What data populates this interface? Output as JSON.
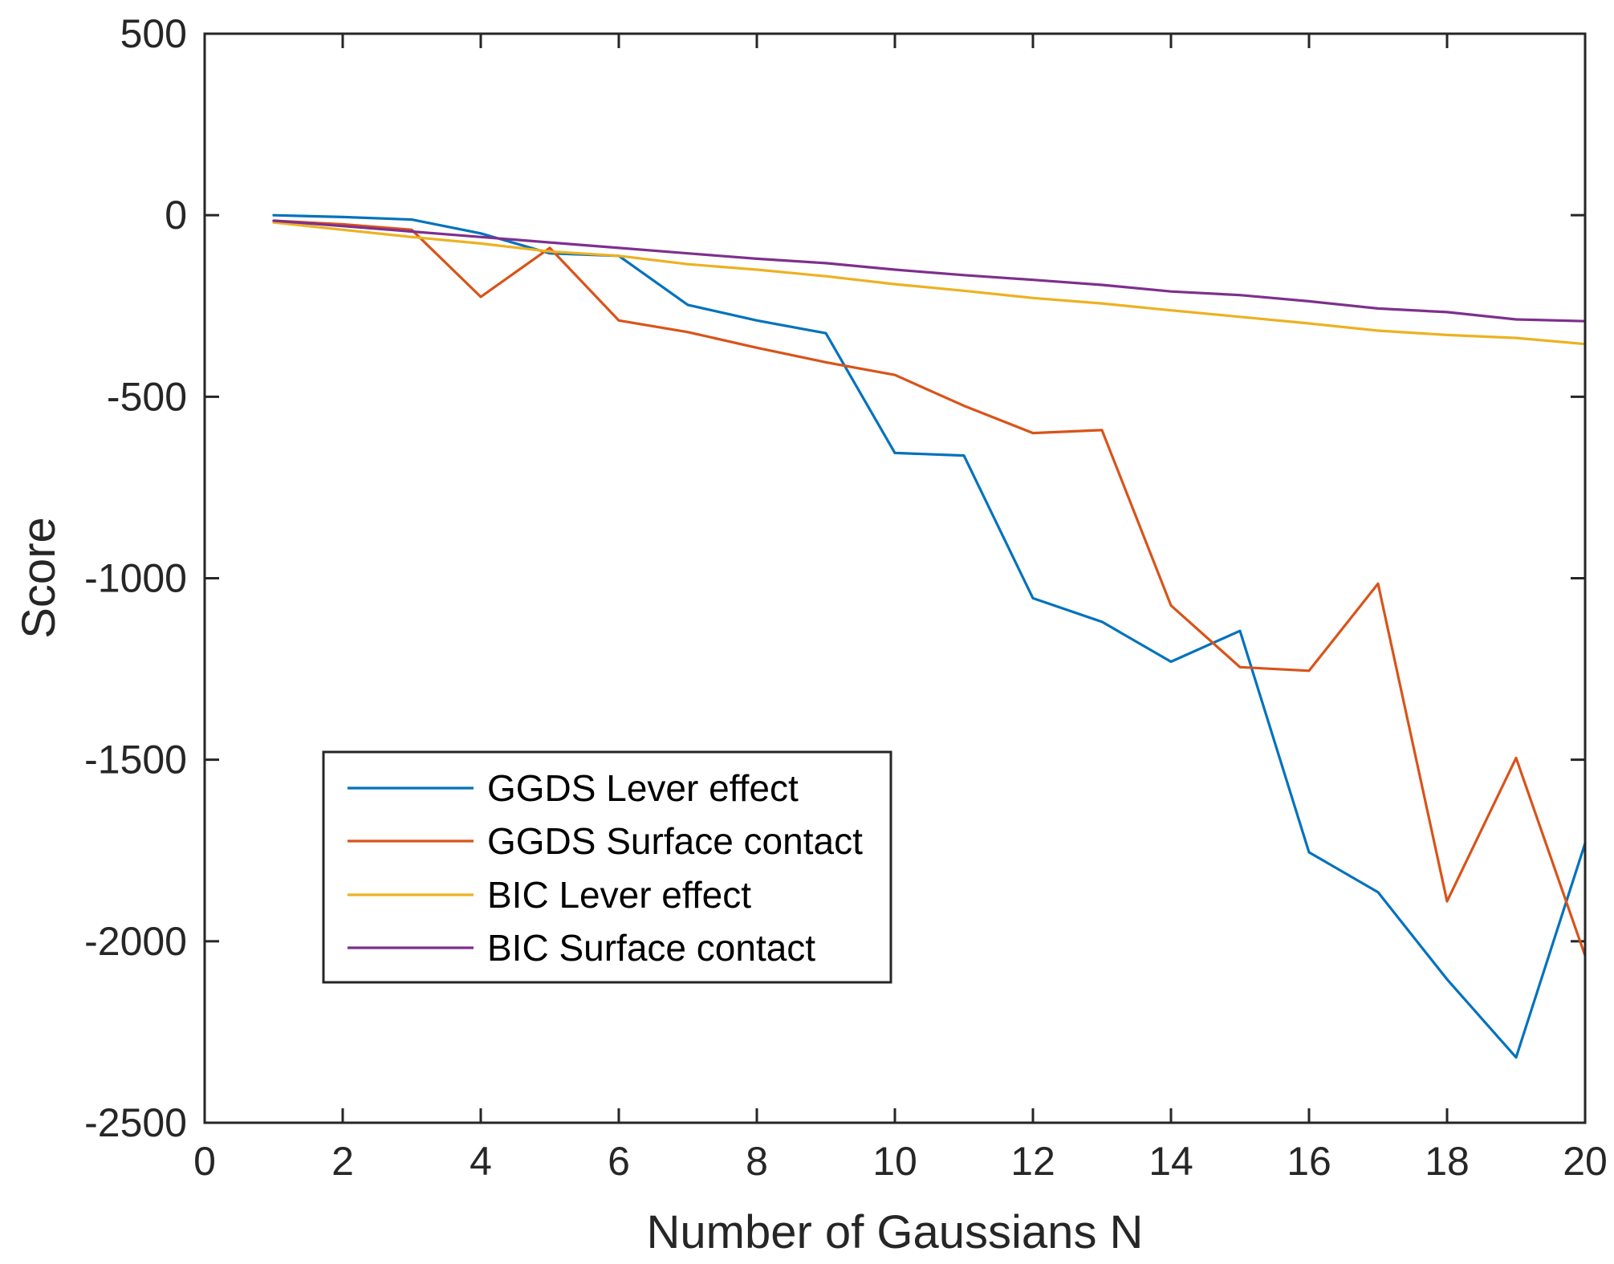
{
  "chart_data": {
    "type": "line",
    "title": "",
    "xlabel": "Number of Gaussians N",
    "ylabel": "Score",
    "xlim": [
      0,
      20
    ],
    "ylim": [
      -2500,
      500
    ],
    "xticks": [
      0,
      2,
      4,
      6,
      8,
      10,
      12,
      14,
      16,
      18,
      20
    ],
    "yticks": [
      500,
      0,
      -500,
      -1000,
      -1500,
      -2000,
      -2500
    ],
    "xtick_labels": [
      "0",
      "2",
      "4",
      "6",
      "8",
      "10",
      "12",
      "14",
      "16",
      "18",
      "20"
    ],
    "ytick_labels": [
      "500",
      "0",
      "-500",
      "-1000",
      "-1500",
      "-2000",
      "-2500"
    ],
    "grid": false,
    "box": true,
    "legend_position": "bottom-left",
    "x": [
      1,
      2,
      3,
      4,
      5,
      6,
      7,
      8,
      9,
      10,
      11,
      12,
      13,
      14,
      15,
      16,
      17,
      18,
      19,
      20
    ],
    "series": [
      {
        "name": "GGDS Lever effect",
        "color": "#0072BD",
        "values": [
          0,
          -5,
          -12,
          -50,
          -105,
          -112,
          -247,
          -290,
          -325,
          -655,
          -662,
          -1055,
          -1120,
          -1230,
          -1145,
          -1755,
          -1865,
          -2105,
          -2320,
          -1730
        ]
      },
      {
        "name": "GGDS Surface contact",
        "color": "#D95319",
        "values": [
          -15,
          -25,
          -40,
          -225,
          -90,
          -290,
          -322,
          -365,
          -405,
          -440,
          -525,
          -600,
          -592,
          -1075,
          -1245,
          -1255,
          -1015,
          -1890,
          -1495,
          -2040
        ]
      },
      {
        "name": "BIC Lever effect",
        "color": "#EDB120",
        "values": [
          -20,
          -40,
          -60,
          -78,
          -100,
          -112,
          -135,
          -150,
          -168,
          -190,
          -208,
          -228,
          -243,
          -262,
          -280,
          -298,
          -318,
          -330,
          -338,
          -355
        ]
      },
      {
        "name": "BIC Surface contact",
        "color": "#7E2F8E",
        "values": [
          -15,
          -30,
          -45,
          -60,
          -75,
          -90,
          -105,
          -120,
          -132,
          -150,
          -165,
          -178,
          -192,
          -210,
          -220,
          -237,
          -257,
          -267,
          -287,
          -292
        ]
      }
    ]
  }
}
